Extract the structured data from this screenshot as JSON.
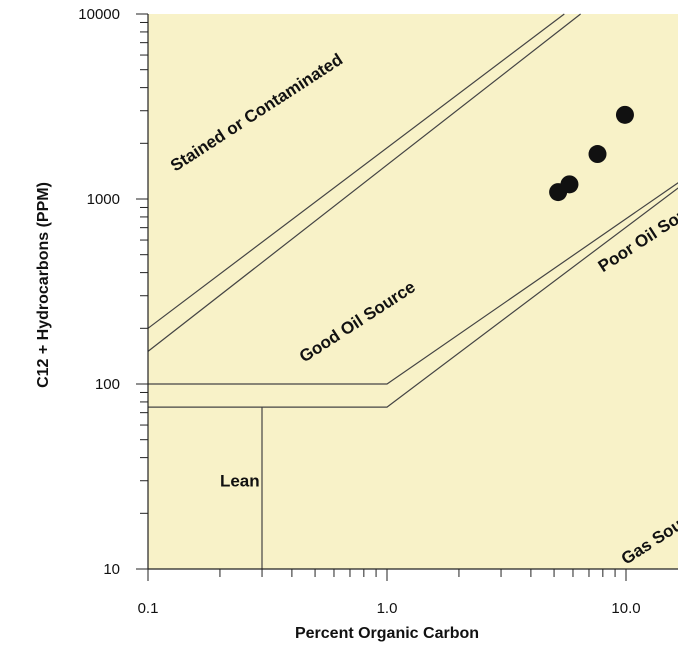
{
  "chart_data": {
    "type": "scatter",
    "title": "",
    "xlabel": "Percent Organic Carbon",
    "ylabel": "C12 + Hydrocarbons (PPM)",
    "xscale": "log",
    "yscale": "log",
    "xlim": [
      0.1,
      20
    ],
    "ylim": [
      10,
      10000
    ],
    "x_ticks": [
      {
        "value": 0.1,
        "label": "0.1"
      },
      {
        "value": 1.0,
        "label": "1.0"
      },
      {
        "value": 10.0,
        "label": "10.0"
      }
    ],
    "y_ticks": [
      {
        "value": 10,
        "label": "10"
      },
      {
        "value": 100,
        "label": "100"
      },
      {
        "value": 1000,
        "label": "1000"
      },
      {
        "value": 10000,
        "label": "10000"
      }
    ],
    "background_color": "#f8f2c8",
    "point_color": "#111111",
    "line_color": "#444444",
    "points": [
      {
        "x": 5.2,
        "y": 1090
      },
      {
        "x": 5.8,
        "y": 1200
      },
      {
        "x": 7.6,
        "y": 1750
      },
      {
        "x": 9.9,
        "y": 2850
      }
    ],
    "boundaries": [
      {
        "name": "stained-upper",
        "points": [
          [
            0.1,
            200
          ],
          [
            5.52,
            10000
          ]
        ]
      },
      {
        "name": "stained-lower",
        "points": [
          [
            0.1,
            150
          ],
          [
            6.46,
            10000
          ]
        ]
      },
      {
        "name": "good-upper",
        "points": [
          [
            0.1,
            100
          ],
          [
            1.0,
            100
          ],
          [
            20,
            1450
          ]
        ]
      },
      {
        "name": "good-lower",
        "points": [
          [
            0.1,
            75
          ],
          [
            1.0,
            75
          ],
          [
            20,
            1380
          ]
        ]
      },
      {
        "name": "lean-divider",
        "points": [
          [
            0.3,
            75
          ],
          [
            0.3,
            10
          ]
        ]
      }
    ],
    "regions": [
      {
        "label": "Stained or Contaminated",
        "x": 0.13,
        "y": 1400,
        "angle": -33
      },
      {
        "label": "Good Oil Source",
        "x": 0.45,
        "y": 130,
        "angle": -33
      },
      {
        "label": "Poor Oil Source",
        "x": 8.0,
        "y": 400,
        "angle": -33
      },
      {
        "label": "Gas Source",
        "x": 10.0,
        "y": 10.5,
        "angle": -33
      },
      {
        "label": "Lean",
        "x": 0.2,
        "y": 28,
        "angle": 0
      }
    ]
  }
}
